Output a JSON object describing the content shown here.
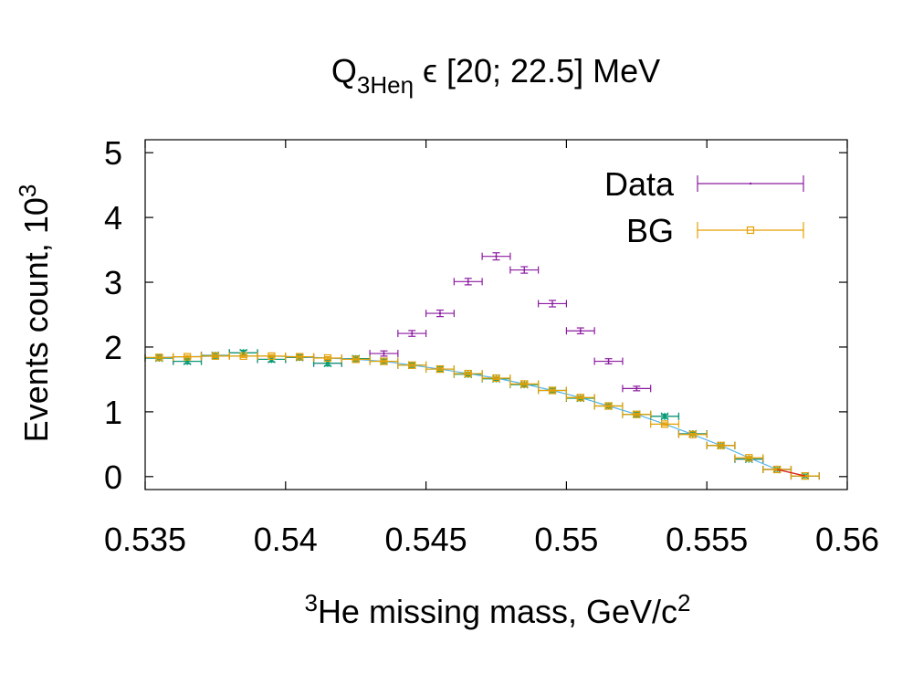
{
  "chart_data": {
    "type": "scatter",
    "title": {
      "main": "Q",
      "subscript": "3Heη",
      "rest": " ϵ [20; 22.5] MeV"
    },
    "xlabel": {
      "superscript": "3",
      "main": "He missing mass, GeV/c",
      "trailing_superscript": "2"
    },
    "ylabel": {
      "main": "Events count, 10",
      "superscript": "3"
    },
    "xlim": [
      0.535,
      0.56
    ],
    "ylim": [
      -0.2,
      5.2
    ],
    "x_ticks": [
      0.535,
      0.54,
      0.545,
      0.55,
      0.555,
      0.56
    ],
    "x_tick_labels": [
      "0.535",
      "0.54",
      "0.545",
      "0.55",
      "0.555",
      "0.56"
    ],
    "y_ticks": [
      0,
      1,
      2,
      3,
      4,
      5
    ],
    "y_tick_labels": [
      "0",
      "1",
      "2",
      "3",
      "4",
      "5"
    ],
    "bin_half_width": 0.0005,
    "legend_position": "top-right",
    "series": [
      {
        "name": "Data",
        "color": "#8b1aa0",
        "marker": "point",
        "x": [
          0.5355,
          0.5365,
          0.5375,
          0.5385,
          0.5395,
          0.5405,
          0.5415,
          0.5425,
          0.5435,
          0.5445,
          0.5455,
          0.5465,
          0.5475,
          0.5485,
          0.5495,
          0.5505,
          0.5515,
          0.5525,
          0.5535,
          0.5545,
          0.5555,
          0.5565,
          0.5575,
          0.5585
        ],
        "y": [
          1.83,
          1.78,
          1.87,
          1.91,
          1.81,
          1.84,
          1.75,
          1.82,
          1.9,
          2.21,
          2.52,
          3.01,
          3.4,
          3.19,
          2.67,
          2.25,
          1.78,
          1.36,
          0.93,
          0.66,
          0.48,
          0.27,
          0.11,
          0.01
        ],
        "err": [
          0.04,
          0.04,
          0.04,
          0.04,
          0.04,
          0.04,
          0.04,
          0.04,
          0.04,
          0.045,
          0.05,
          0.05,
          0.055,
          0.05,
          0.05,
          0.045,
          0.04,
          0.035,
          0.03,
          0.025,
          0.02,
          0.02,
          0.015,
          0.01
        ]
      },
      {
        "name": "",
        "color": "#009e73",
        "marker": "star",
        "x": [
          0.5355,
          0.5365,
          0.5375,
          0.5385,
          0.5395,
          0.5405,
          0.5415,
          0.5425,
          0.5435,
          0.5445,
          0.5455,
          0.5465,
          0.5475,
          0.5485,
          0.5495,
          0.5505,
          0.5515,
          0.5525,
          0.5535,
          0.5545,
          0.5555,
          0.5565,
          0.5575,
          0.5585
        ],
        "y": [
          1.83,
          1.78,
          1.87,
          1.91,
          1.81,
          1.84,
          1.75,
          1.82,
          1.78,
          1.72,
          1.66,
          1.58,
          1.51,
          1.42,
          1.33,
          1.21,
          1.09,
          0.96,
          0.93,
          0.66,
          0.48,
          0.27,
          0.11,
          0.01
        ],
        "err": [
          0.04,
          0.04,
          0.04,
          0.04,
          0.04,
          0.04,
          0.04,
          0.04,
          0.03,
          0.03,
          0.03,
          0.03,
          0.03,
          0.03,
          0.03,
          0.03,
          0.03,
          0.03,
          0.03,
          0.025,
          0.02,
          0.02,
          0.015,
          0.01
        ]
      },
      {
        "name": "",
        "color": "#56b4e9",
        "marker": "line",
        "x": [
          0.5355,
          0.5365,
          0.5375,
          0.5385,
          0.5395,
          0.5405,
          0.5415,
          0.5425,
          0.5435,
          0.5445,
          0.5455,
          0.5465,
          0.5475,
          0.5485,
          0.5495,
          0.5505,
          0.5515,
          0.5525,
          0.5535,
          0.5545,
          0.5555,
          0.5565,
          0.5575,
          0.5585
        ],
        "y": [
          1.84,
          1.85,
          1.86,
          1.86,
          1.86,
          1.85,
          1.83,
          1.81,
          1.78,
          1.72,
          1.66,
          1.59,
          1.52,
          1.43,
          1.33,
          1.22,
          1.09,
          0.96,
          0.81,
          0.65,
          0.48,
          0.29,
          0.11,
          0.01
        ]
      },
      {
        "name": "BG",
        "color": "#e69f00",
        "marker": "square",
        "x": [
          0.5355,
          0.5365,
          0.5375,
          0.5385,
          0.5395,
          0.5405,
          0.5415,
          0.5425,
          0.5435,
          0.5445,
          0.5455,
          0.5465,
          0.5475,
          0.5485,
          0.5495,
          0.5505,
          0.5515,
          0.5525,
          0.5535,
          0.5545,
          0.5555,
          0.5565,
          0.5575,
          0.5585
        ],
        "y": [
          1.84,
          1.85,
          1.86,
          1.86,
          1.86,
          1.85,
          1.83,
          1.81,
          1.78,
          1.72,
          1.66,
          1.59,
          1.52,
          1.43,
          1.33,
          1.22,
          1.09,
          0.96,
          0.81,
          0.65,
          0.48,
          0.29,
          0.11,
          0.01
        ],
        "err": [
          0.02,
          0.02,
          0.02,
          0.02,
          0.02,
          0.02,
          0.02,
          0.02,
          0.02,
          0.02,
          0.02,
          0.02,
          0.02,
          0.02,
          0.02,
          0.02,
          0.02,
          0.02,
          0.02,
          0.02,
          0.02,
          0.02,
          0.015,
          0.01
        ]
      },
      {
        "name": "",
        "color": "#e51e10",
        "marker": "line",
        "x": [
          0.5575,
          0.5585
        ],
        "y": [
          0.11,
          0.01
        ]
      }
    ]
  }
}
